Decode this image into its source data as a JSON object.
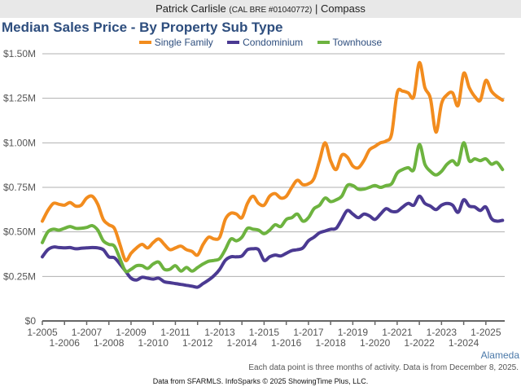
{
  "header": {
    "agent_name": "Patrick Carlisle",
    "license": "(CAL BRE #01040772)",
    "separator": "|",
    "brokerage": "Compass"
  },
  "region_label": "Alameda",
  "note": "Each data point is three months of activity. Data is from December 8, 2025.",
  "footer": "Data from SFARMLS. InfoSparks © 2025 ShowingTime Plus, LLC.",
  "chart_data": {
    "type": "line",
    "title": "Median Sales Price - By Property Sub Type",
    "xlabel": "",
    "ylabel": "",
    "ylim": [
      0,
      1500000
    ],
    "xlim": [
      2005.0,
      2025.85
    ],
    "grid": true,
    "legend_position": "top-center",
    "y_ticks": [
      {
        "value": 0,
        "label": "$0"
      },
      {
        "value": 250000,
        "label": "$0.25M"
      },
      {
        "value": 500000,
        "label": "$0.50M"
      },
      {
        "value": 750000,
        "label": "$0.75M"
      },
      {
        "value": 1000000,
        "label": "$1.00M"
      },
      {
        "value": 1250000,
        "label": "$1.25M"
      },
      {
        "value": 1500000,
        "label": "$1.50M"
      }
    ],
    "x_ticks": [
      {
        "value": 2005,
        "label": "1-2005"
      },
      {
        "value": 2006,
        "label": "1-2006"
      },
      {
        "value": 2007,
        "label": "1-2007"
      },
      {
        "value": 2008,
        "label": "1-2008"
      },
      {
        "value": 2009,
        "label": "1-2009"
      },
      {
        "value": 2010,
        "label": "1-2010"
      },
      {
        "value": 2011,
        "label": "1-2011"
      },
      {
        "value": 2012,
        "label": "1-2012"
      },
      {
        "value": 2013,
        "label": "1-2013"
      },
      {
        "value": 2014,
        "label": "1-2014"
      },
      {
        "value": 2015,
        "label": "1-2015"
      },
      {
        "value": 2016,
        "label": "1-2016"
      },
      {
        "value": 2017,
        "label": "1-2017"
      },
      {
        "value": 2018,
        "label": "1-2018"
      },
      {
        "value": 2019,
        "label": "1-2019"
      },
      {
        "value": 2020,
        "label": "1-2020"
      },
      {
        "value": 2021,
        "label": "1-2021"
      },
      {
        "value": 2022,
        "label": "1-2022"
      },
      {
        "value": 2023,
        "label": "1-2023"
      },
      {
        "value": 2024,
        "label": "1-2024"
      },
      {
        "value": 2025,
        "label": "1-2025"
      }
    ],
    "x": [
      2005.0,
      2005.25,
      2005.5,
      2005.75,
      2006.0,
      2006.25,
      2006.5,
      2006.75,
      2007.0,
      2007.25,
      2007.5,
      2007.75,
      2008.0,
      2008.25,
      2008.5,
      2008.75,
      2009.0,
      2009.25,
      2009.5,
      2009.75,
      2010.0,
      2010.25,
      2010.5,
      2010.75,
      2011.0,
      2011.25,
      2011.5,
      2011.75,
      2012.0,
      2012.25,
      2012.5,
      2012.75,
      2013.0,
      2013.25,
      2013.5,
      2013.75,
      2014.0,
      2014.25,
      2014.5,
      2014.75,
      2015.0,
      2015.25,
      2015.5,
      2015.75,
      2016.0,
      2016.25,
      2016.5,
      2016.75,
      2017.0,
      2017.25,
      2017.5,
      2017.75,
      2018.0,
      2018.25,
      2018.5,
      2018.75,
      2019.0,
      2019.25,
      2019.5,
      2019.75,
      2020.0,
      2020.25,
      2020.5,
      2020.75,
      2021.0,
      2021.25,
      2021.5,
      2021.75,
      2022.0,
      2022.25,
      2022.5,
      2022.75,
      2023.0,
      2023.25,
      2023.5,
      2023.75,
      2024.0,
      2024.25,
      2024.5,
      2024.75,
      2025.0,
      2025.25,
      2025.5,
      2025.75
    ],
    "series": [
      {
        "name": "Single Family",
        "color": "#f28c1e",
        "values": [
          560000,
          620000,
          660000,
          655000,
          650000,
          665000,
          645000,
          650000,
          690000,
          700000,
          655000,
          570000,
          540000,
          520000,
          430000,
          340000,
          380000,
          410000,
          430000,
          410000,
          440000,
          460000,
          430000,
          400000,
          410000,
          420000,
          400000,
          390000,
          370000,
          430000,
          470000,
          460000,
          470000,
          570000,
          605000,
          600000,
          580000,
          660000,
          700000,
          660000,
          650000,
          700000,
          715000,
          690000,
          700000,
          750000,
          790000,
          765000,
          770000,
          800000,
          900000,
          1000000,
          900000,
          850000,
          930000,
          920000,
          870000,
          860000,
          900000,
          960000,
          980000,
          1000000,
          1010000,
          1050000,
          1280000,
          1290000,
          1280000,
          1260000,
          1450000,
          1310000,
          1250000,
          1060000,
          1220000,
          1270000,
          1280000,
          1210000,
          1390000,
          1310000,
          1260000,
          1240000,
          1350000,
          1290000,
          1260000,
          1240000
        ]
      },
      {
        "name": "Condominium",
        "color": "#4b3a92",
        "values": [
          360000,
          400000,
          415000,
          412000,
          410000,
          412000,
          405000,
          408000,
          410000,
          412000,
          410000,
          400000,
          360000,
          355000,
          320000,
          280000,
          240000,
          230000,
          245000,
          240000,
          235000,
          240000,
          220000,
          215000,
          210000,
          205000,
          200000,
          195000,
          190000,
          210000,
          230000,
          255000,
          290000,
          340000,
          360000,
          360000,
          365000,
          400000,
          405000,
          400000,
          340000,
          360000,
          370000,
          365000,
          380000,
          395000,
          400000,
          410000,
          450000,
          470000,
          495000,
          505000,
          515000,
          520000,
          570000,
          620000,
          600000,
          580000,
          600000,
          590000,
          570000,
          600000,
          630000,
          615000,
          615000,
          640000,
          660000,
          650000,
          700000,
          660000,
          645000,
          625000,
          650000,
          660000,
          650000,
          610000,
          680000,
          645000,
          640000,
          620000,
          640000,
          575000,
          560000,
          565000
        ]
      },
      {
        "name": "Townhouse",
        "color": "#6db33f",
        "values": [
          440000,
          500000,
          515000,
          510000,
          520000,
          530000,
          520000,
          520000,
          525000,
          535000,
          510000,
          450000,
          430000,
          420000,
          350000,
          280000,
          290000,
          310000,
          310000,
          295000,
          320000,
          330000,
          290000,
          290000,
          310000,
          280000,
          300000,
          280000,
          300000,
          320000,
          335000,
          340000,
          350000,
          400000,
          460000,
          450000,
          470000,
          520000,
          515000,
          510000,
          490000,
          510000,
          540000,
          530000,
          570000,
          580000,
          600000,
          560000,
          580000,
          630000,
          650000,
          690000,
          670000,
          680000,
          700000,
          760000,
          760000,
          740000,
          740000,
          750000,
          760000,
          750000,
          760000,
          770000,
          830000,
          850000,
          860000,
          850000,
          990000,
          880000,
          840000,
          820000,
          840000,
          880000,
          900000,
          880000,
          1000000,
          900000,
          910000,
          900000,
          910000,
          880000,
          890000,
          850000
        ]
      }
    ]
  }
}
